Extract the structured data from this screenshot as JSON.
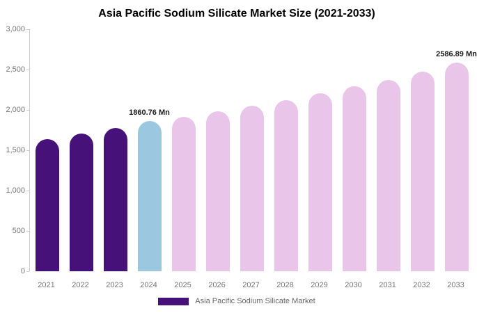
{
  "title": "Asia Pacific Sodium Silicate Market Size (2021-2033)",
  "chart_data": {
    "type": "bar",
    "title": "Asia Pacific Sodium Silicate Market Size (2021-2033)",
    "xlabel": "",
    "ylabel": "",
    "ylim": [
      0,
      3000
    ],
    "grid": false,
    "legend_position": "bottom",
    "categories": [
      "2021",
      "2022",
      "2023",
      "2024",
      "2025",
      "2026",
      "2027",
      "2028",
      "2029",
      "2030",
      "2031",
      "2032",
      "2033"
    ],
    "values": [
      1640,
      1705,
      1775,
      1860.76,
      1910,
      1985,
      2050,
      2125,
      2205,
      2290,
      2375,
      2475,
      2586.89
    ],
    "bar_colors": [
      "#46127a",
      "#46127a",
      "#46127a",
      "#9cc7e0",
      "#e9c6e9",
      "#e9c6e9",
      "#e9c6e9",
      "#e9c6e9",
      "#e9c6e9",
      "#e9c6e9",
      "#e9c6e9",
      "#e9c6e9",
      "#e9c6e9"
    ],
    "colors": {
      "historical": "#46127a",
      "highlight": "#9cc7e0",
      "forecast": "#e9c6e9"
    },
    "y_ticks": [
      "3,000",
      "2,500",
      "2,000",
      "1,500",
      "1,000",
      "500",
      "0"
    ],
    "annotations": [
      {
        "category": "2024",
        "text": "1860.76 Mn"
      },
      {
        "category": "2033",
        "text": "2586.89 Mn"
      }
    ],
    "legend": [
      {
        "label": "Asia Pacific Sodium Silicate Market",
        "color": "#46127a"
      }
    ]
  }
}
